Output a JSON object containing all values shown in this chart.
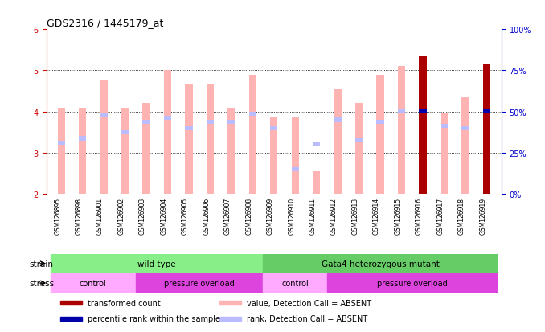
{
  "title": "GDS2316 / 1445179_at",
  "samples": [
    "GSM126895",
    "GSM126898",
    "GSM126901",
    "GSM126902",
    "GSM126903",
    "GSM126904",
    "GSM126905",
    "GSM126906",
    "GSM126907",
    "GSM126908",
    "GSM126909",
    "GSM126910",
    "GSM126911",
    "GSM126912",
    "GSM126913",
    "GSM126914",
    "GSM126915",
    "GSM126916",
    "GSM126917",
    "GSM126918",
    "GSM126919"
  ],
  "value_bars": [
    4.1,
    4.1,
    4.75,
    4.1,
    4.2,
    5.0,
    4.65,
    4.65,
    4.1,
    4.9,
    3.85,
    3.85,
    2.55,
    4.55,
    4.2,
    4.9,
    5.1,
    5.35,
    3.95,
    4.35,
    5.15
  ],
  "rank_bars": [
    3.25,
    3.35,
    3.9,
    3.5,
    3.75,
    3.85,
    3.6,
    3.75,
    3.75,
    3.95,
    3.6,
    2.6,
    3.2,
    3.8,
    3.3,
    3.75,
    4.0,
    4.0,
    3.65,
    3.6,
    4.0
  ],
  "is_red": [
    false,
    false,
    false,
    false,
    false,
    false,
    false,
    false,
    false,
    false,
    false,
    false,
    false,
    false,
    false,
    false,
    false,
    true,
    false,
    false,
    true
  ],
  "has_blue_rank": [
    false,
    false,
    false,
    false,
    false,
    false,
    false,
    false,
    false,
    false,
    false,
    false,
    false,
    false,
    false,
    false,
    false,
    true,
    false,
    false,
    true
  ],
  "ylim_left": [
    2,
    6
  ],
  "ylim_right": [
    0,
    100
  ],
  "yticks_left": [
    2,
    3,
    4,
    5,
    6
  ],
  "yticks_right": [
    0,
    25,
    50,
    75,
    100
  ],
  "left_color": "#cc0000",
  "right_color": "#0000cc",
  "pink_color": "#ffb3b3",
  "light_blue_color": "#bbbbff",
  "dark_red_color": "#aa0000",
  "dark_blue_color": "#0000aa",
  "strain_wild": {
    "label": "wild type",
    "start": 0,
    "end": 10,
    "color": "#88ee88"
  },
  "strain_mutant": {
    "label": "Gata4 heterozygous mutant",
    "start": 10,
    "end": 21,
    "color": "#66cc66"
  },
  "stress_groups": [
    {
      "label": "control",
      "start": 0,
      "end": 4,
      "color": "#ffaaff"
    },
    {
      "label": "pressure overload",
      "start": 4,
      "end": 10,
      "color": "#dd44dd"
    },
    {
      "label": "control",
      "start": 10,
      "end": 13,
      "color": "#ffaaff"
    },
    {
      "label": "pressure overload",
      "start": 13,
      "end": 21,
      "color": "#dd44dd"
    }
  ],
  "bar_width": 0.35,
  "background_color": "#ffffff",
  "tick_area_color": "#cccccc"
}
